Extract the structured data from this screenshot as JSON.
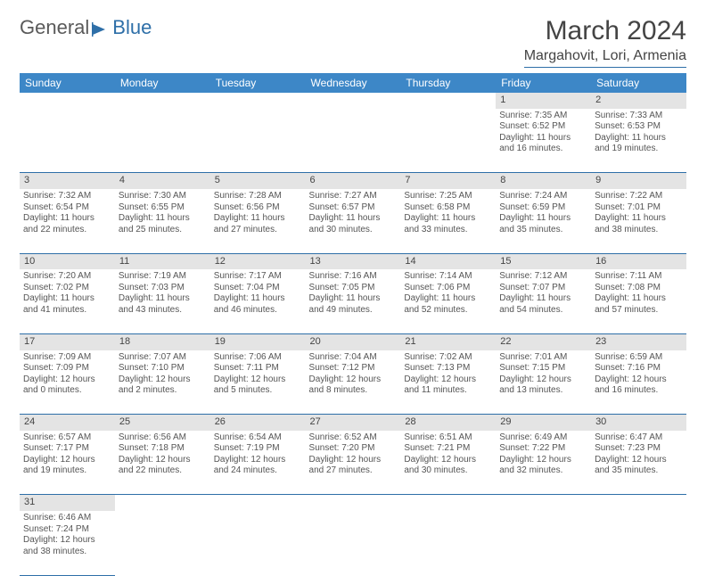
{
  "logo": {
    "part1": "General",
    "part2": "Blue"
  },
  "title": "March 2024",
  "location": "Margahovit, Lori, Armenia",
  "colors": {
    "header_bg": "#3d87c7",
    "header_fg": "#ffffff",
    "rule": "#2e6fa8",
    "daynum_bg": "#e4e4e4",
    "text": "#555555"
  },
  "day_headers": [
    "Sunday",
    "Monday",
    "Tuesday",
    "Wednesday",
    "Thursday",
    "Friday",
    "Saturday"
  ],
  "weeks": [
    [
      null,
      null,
      null,
      null,
      null,
      {
        "n": "1",
        "sunrise": "Sunrise: 7:35 AM",
        "sunset": "Sunset: 6:52 PM",
        "day": "Daylight: 11 hours and 16 minutes."
      },
      {
        "n": "2",
        "sunrise": "Sunrise: 7:33 AM",
        "sunset": "Sunset: 6:53 PM",
        "day": "Daylight: 11 hours and 19 minutes."
      }
    ],
    [
      {
        "n": "3",
        "sunrise": "Sunrise: 7:32 AM",
        "sunset": "Sunset: 6:54 PM",
        "day": "Daylight: 11 hours and 22 minutes."
      },
      {
        "n": "4",
        "sunrise": "Sunrise: 7:30 AM",
        "sunset": "Sunset: 6:55 PM",
        "day": "Daylight: 11 hours and 25 minutes."
      },
      {
        "n": "5",
        "sunrise": "Sunrise: 7:28 AM",
        "sunset": "Sunset: 6:56 PM",
        "day": "Daylight: 11 hours and 27 minutes."
      },
      {
        "n": "6",
        "sunrise": "Sunrise: 7:27 AM",
        "sunset": "Sunset: 6:57 PM",
        "day": "Daylight: 11 hours and 30 minutes."
      },
      {
        "n": "7",
        "sunrise": "Sunrise: 7:25 AM",
        "sunset": "Sunset: 6:58 PM",
        "day": "Daylight: 11 hours and 33 minutes."
      },
      {
        "n": "8",
        "sunrise": "Sunrise: 7:24 AM",
        "sunset": "Sunset: 6:59 PM",
        "day": "Daylight: 11 hours and 35 minutes."
      },
      {
        "n": "9",
        "sunrise": "Sunrise: 7:22 AM",
        "sunset": "Sunset: 7:01 PM",
        "day": "Daylight: 11 hours and 38 minutes."
      }
    ],
    [
      {
        "n": "10",
        "sunrise": "Sunrise: 7:20 AM",
        "sunset": "Sunset: 7:02 PM",
        "day": "Daylight: 11 hours and 41 minutes."
      },
      {
        "n": "11",
        "sunrise": "Sunrise: 7:19 AM",
        "sunset": "Sunset: 7:03 PM",
        "day": "Daylight: 11 hours and 43 minutes."
      },
      {
        "n": "12",
        "sunrise": "Sunrise: 7:17 AM",
        "sunset": "Sunset: 7:04 PM",
        "day": "Daylight: 11 hours and 46 minutes."
      },
      {
        "n": "13",
        "sunrise": "Sunrise: 7:16 AM",
        "sunset": "Sunset: 7:05 PM",
        "day": "Daylight: 11 hours and 49 minutes."
      },
      {
        "n": "14",
        "sunrise": "Sunrise: 7:14 AM",
        "sunset": "Sunset: 7:06 PM",
        "day": "Daylight: 11 hours and 52 minutes."
      },
      {
        "n": "15",
        "sunrise": "Sunrise: 7:12 AM",
        "sunset": "Sunset: 7:07 PM",
        "day": "Daylight: 11 hours and 54 minutes."
      },
      {
        "n": "16",
        "sunrise": "Sunrise: 7:11 AM",
        "sunset": "Sunset: 7:08 PM",
        "day": "Daylight: 11 hours and 57 minutes."
      }
    ],
    [
      {
        "n": "17",
        "sunrise": "Sunrise: 7:09 AM",
        "sunset": "Sunset: 7:09 PM",
        "day": "Daylight: 12 hours and 0 minutes."
      },
      {
        "n": "18",
        "sunrise": "Sunrise: 7:07 AM",
        "sunset": "Sunset: 7:10 PM",
        "day": "Daylight: 12 hours and 2 minutes."
      },
      {
        "n": "19",
        "sunrise": "Sunrise: 7:06 AM",
        "sunset": "Sunset: 7:11 PM",
        "day": "Daylight: 12 hours and 5 minutes."
      },
      {
        "n": "20",
        "sunrise": "Sunrise: 7:04 AM",
        "sunset": "Sunset: 7:12 PM",
        "day": "Daylight: 12 hours and 8 minutes."
      },
      {
        "n": "21",
        "sunrise": "Sunrise: 7:02 AM",
        "sunset": "Sunset: 7:13 PM",
        "day": "Daylight: 12 hours and 11 minutes."
      },
      {
        "n": "22",
        "sunrise": "Sunrise: 7:01 AM",
        "sunset": "Sunset: 7:15 PM",
        "day": "Daylight: 12 hours and 13 minutes."
      },
      {
        "n": "23",
        "sunrise": "Sunrise: 6:59 AM",
        "sunset": "Sunset: 7:16 PM",
        "day": "Daylight: 12 hours and 16 minutes."
      }
    ],
    [
      {
        "n": "24",
        "sunrise": "Sunrise: 6:57 AM",
        "sunset": "Sunset: 7:17 PM",
        "day": "Daylight: 12 hours and 19 minutes."
      },
      {
        "n": "25",
        "sunrise": "Sunrise: 6:56 AM",
        "sunset": "Sunset: 7:18 PM",
        "day": "Daylight: 12 hours and 22 minutes."
      },
      {
        "n": "26",
        "sunrise": "Sunrise: 6:54 AM",
        "sunset": "Sunset: 7:19 PM",
        "day": "Daylight: 12 hours and 24 minutes."
      },
      {
        "n": "27",
        "sunrise": "Sunrise: 6:52 AM",
        "sunset": "Sunset: 7:20 PM",
        "day": "Daylight: 12 hours and 27 minutes."
      },
      {
        "n": "28",
        "sunrise": "Sunrise: 6:51 AM",
        "sunset": "Sunset: 7:21 PM",
        "day": "Daylight: 12 hours and 30 minutes."
      },
      {
        "n": "29",
        "sunrise": "Sunrise: 6:49 AM",
        "sunset": "Sunset: 7:22 PM",
        "day": "Daylight: 12 hours and 32 minutes."
      },
      {
        "n": "30",
        "sunrise": "Sunrise: 6:47 AM",
        "sunset": "Sunset: 7:23 PM",
        "day": "Daylight: 12 hours and 35 minutes."
      }
    ],
    [
      {
        "n": "31",
        "sunrise": "Sunrise: 6:46 AM",
        "sunset": "Sunset: 7:24 PM",
        "day": "Daylight: 12 hours and 38 minutes."
      },
      null,
      null,
      null,
      null,
      null,
      null
    ]
  ]
}
